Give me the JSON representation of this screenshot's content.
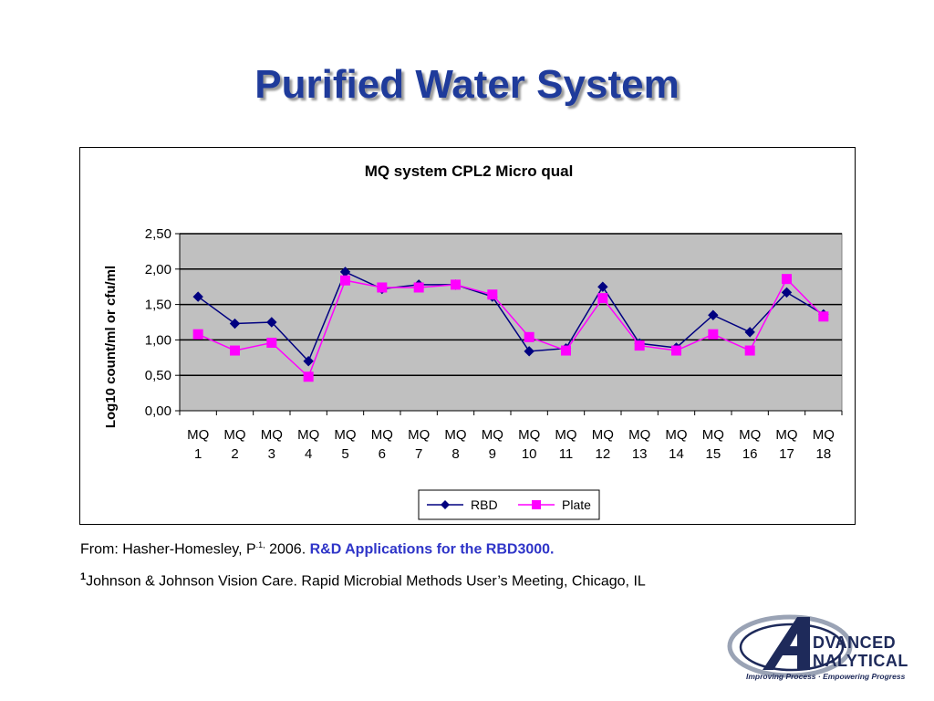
{
  "slide": {
    "title": "Purified Water System"
  },
  "chart_data": {
    "type": "line",
    "title": "MQ system CPL2 Micro qual",
    "ylabel": "Log10 count/ml  or cfu/ml",
    "xlabel": "",
    "categories": [
      [
        "MQ",
        "1"
      ],
      [
        "MQ",
        "2"
      ],
      [
        "MQ",
        "3"
      ],
      [
        "MQ",
        "4"
      ],
      [
        "MQ",
        "5"
      ],
      [
        "MQ",
        "6"
      ],
      [
        "MQ",
        "7"
      ],
      [
        "MQ",
        "8"
      ],
      [
        "MQ",
        "9"
      ],
      [
        "MQ",
        "10"
      ],
      [
        "MQ",
        "11"
      ],
      [
        "MQ",
        "12"
      ],
      [
        "MQ",
        "13"
      ],
      [
        "MQ",
        "14"
      ],
      [
        "MQ",
        "15"
      ],
      [
        "MQ",
        "16"
      ],
      [
        "MQ",
        "17"
      ],
      [
        "MQ",
        "18"
      ]
    ],
    "ylim": [
      0,
      2.5
    ],
    "yticks": [
      0,
      0.5,
      1,
      1.5,
      2,
      2.5
    ],
    "ytick_labels": [
      "0,00",
      "0,50",
      "1,00",
      "1,50",
      "2,00",
      "2,50"
    ],
    "grid": "horizontal",
    "plot_background": "#c0c0c0",
    "legend_position": "bottom",
    "series": [
      {
        "name": "RBD",
        "color": "#000080",
        "marker": "diamond",
        "values": [
          1.61,
          1.23,
          1.25,
          0.7,
          1.96,
          1.72,
          1.78,
          1.78,
          1.61,
          0.84,
          0.88,
          1.75,
          0.95,
          0.89,
          1.35,
          1.11,
          1.67,
          1.36
        ]
      },
      {
        "name": "Plate",
        "color": "#ff00ff",
        "marker": "square",
        "values": [
          1.08,
          0.85,
          0.96,
          0.48,
          1.84,
          1.74,
          1.74,
          1.78,
          1.64,
          1.04,
          0.85,
          1.59,
          0.92,
          0.85,
          1.08,
          0.85,
          1.86,
          1.33
        ]
      }
    ]
  },
  "source": {
    "prefix": "From: Hasher-Homesley, P",
    "superscript": ".1,",
    "year": " 2006. ",
    "title": "R&D Applications for the RBD3000."
  },
  "footnote": {
    "marker": "1",
    "text": "Johnson & Johnson Vision Care. Rapid Microbial Methods User’s Meeting, Chicago, IL"
  },
  "logo": {
    "line1": "DVANCED",
    "line2": "NALYTICAL",
    "tagline": "Improving Process · Empowering Progress",
    "colors": {
      "navy": "#1e2a5a",
      "silver": "#9aa3b5"
    }
  }
}
